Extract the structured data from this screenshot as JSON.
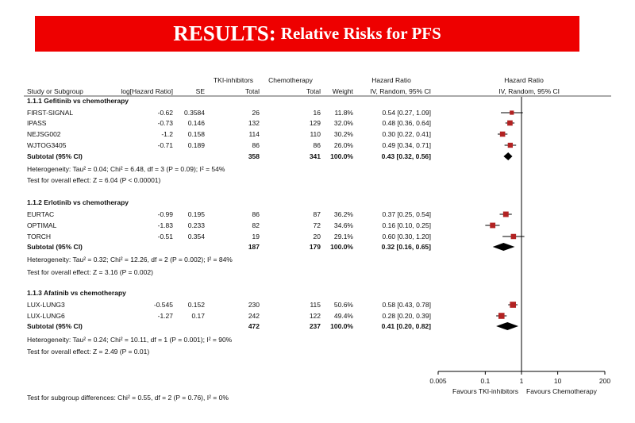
{
  "banner": {
    "title_main": "RESULTS:",
    "title_sub": "Relative Risks for PFS"
  },
  "headers": {
    "group_tki": "TKI-inhibitors",
    "group_chemo": "Chemotherapy",
    "hazard_ratio_left": "Hazard Ratio",
    "hazard_ratio_right": "Hazard Ratio",
    "study": "Study or Subgroup",
    "loghr": "log[Hazard Ratio]",
    "se": "SE",
    "tki_total": "Total",
    "chemo_total": "Total",
    "weight": "Weight",
    "method_left": "IV, Random, 95% CI",
    "method_right": "IV, Random, 95% CI"
  },
  "chart_data": {
    "type": "forest",
    "x_scale": "log",
    "xlim": [
      0.005,
      200
    ],
    "xticks": [
      "0.005",
      "0.1",
      "1",
      "10",
      "200"
    ],
    "reference_line": 1,
    "favours_left": "Favours TKI-inhibitors",
    "favours_right": "Favours Chemotherapy",
    "marker_color": "#b22222",
    "subgroups": [
      {
        "title": "1.1.1 Gefitinib vs chemotherapy",
        "studies": [
          {
            "name": "FIRST-SIGNAL",
            "loghr": "-0.62",
            "se": "0.3584",
            "tki": "26",
            "chemo": "16",
            "weight": "11.8%",
            "ci_text": "0.54 [0.27, 1.09]",
            "hr": 0.54,
            "lo": 0.27,
            "hi": 1.09,
            "w": 11.8
          },
          {
            "name": "IPASS",
            "loghr": "-0.73",
            "se": "0.146",
            "tki": "132",
            "chemo": "129",
            "weight": "32.0%",
            "ci_text": "0.48 [0.36, 0.64]",
            "hr": 0.48,
            "lo": 0.36,
            "hi": 0.64,
            "w": 32.0
          },
          {
            "name": "NEJSG002",
            "loghr": "-1.2",
            "se": "0.158",
            "tki": "114",
            "chemo": "110",
            "weight": "30.2%",
            "ci_text": "0.30 [0.22, 0.41]",
            "hr": 0.3,
            "lo": 0.22,
            "hi": 0.41,
            "w": 30.2
          },
          {
            "name": "WJTOG3405",
            "loghr": "-0.71",
            "se": "0.189",
            "tki": "86",
            "chemo": "86",
            "weight": "26.0%",
            "ci_text": "0.49 [0.34, 0.71]",
            "hr": 0.49,
            "lo": 0.34,
            "hi": 0.71,
            "w": 26.0
          }
        ],
        "subtotal": {
          "label": "Subtotal (95% CI)",
          "tki": "358",
          "chemo": "341",
          "weight": "100.0%",
          "ci_text": "0.43 [0.32, 0.56]",
          "hr": 0.43,
          "lo": 0.32,
          "hi": 0.56
        },
        "heterogeneity": "Heterogeneity: Tau² = 0.04; Chi² = 6.48, df = 3 (P = 0.09); I² = 54%",
        "overall": "Test for overall effect: Z = 6.04 (P < 0.00001)"
      },
      {
        "title": "1.1.2 Erlotinib vs chemotherapy",
        "studies": [
          {
            "name": "EURTAC",
            "loghr": "-0.99",
            "se": "0.195",
            "tki": "86",
            "chemo": "87",
            "weight": "36.2%",
            "ci_text": "0.37 [0.25, 0.54]",
            "hr": 0.37,
            "lo": 0.25,
            "hi": 0.54,
            "w": 36.2
          },
          {
            "name": "OPTIMAL",
            "loghr": "-1.83",
            "se": "0.233",
            "tki": "82",
            "chemo": "72",
            "weight": "34.6%",
            "ci_text": "0.16 [0.10, 0.25]",
            "hr": 0.16,
            "lo": 0.1,
            "hi": 0.25,
            "w": 34.6
          },
          {
            "name": "TORCH",
            "loghr": "-0.51",
            "se": "0.354",
            "tki": "19",
            "chemo": "20",
            "weight": "29.1%",
            "ci_text": "0.60 [0.30, 1.20]",
            "hr": 0.6,
            "lo": 0.3,
            "hi": 1.2,
            "w": 29.1
          }
        ],
        "subtotal": {
          "label": "Subtotal (95% CI)",
          "tki": "187",
          "chemo": "179",
          "weight": "100.0%",
          "ci_text": "0.32 [0.16, 0.65]",
          "hr": 0.32,
          "lo": 0.16,
          "hi": 0.65
        },
        "heterogeneity": "Heterogeneity: Tau² = 0.32; Chi² = 12.26, df = 2 (P = 0.002); I² = 84%",
        "overall": "Test for overall effect: Z = 3.16 (P = 0.002)"
      },
      {
        "title": "1.1.3 Afatinib vs chemotherapy",
        "studies": [
          {
            "name": "LUX-LUNG3",
            "loghr": "-0.545",
            "se": "0.152",
            "tki": "230",
            "chemo": "115",
            "weight": "50.6%",
            "ci_text": "0.58 [0.43, 0.78]",
            "hr": 0.58,
            "lo": 0.43,
            "hi": 0.78,
            "w": 50.6
          },
          {
            "name": "LUX-LUNG6",
            "loghr": "-1.27",
            "se": "0.17",
            "tki": "242",
            "chemo": "122",
            "weight": "49.4%",
            "ci_text": "0.28 [0.20, 0.39]",
            "hr": 0.28,
            "lo": 0.2,
            "hi": 0.39,
            "w": 49.4
          }
        ],
        "subtotal": {
          "label": "Subtotal (95% CI)",
          "tki": "472",
          "chemo": "237",
          "weight": "100.0%",
          "ci_text": "0.41 [0.20, 0.82]",
          "hr": 0.41,
          "lo": 0.2,
          "hi": 0.82
        },
        "heterogeneity": "Heterogeneity: Tau² = 0.24; Chi² = 10.11, df = 1 (P = 0.001); I² = 90%",
        "overall": "Test for overall effect: Z = 2.49 (P = 0.01)"
      }
    ],
    "subgroup_differences": "Test for subgroup differences: Chi² = 0.55, df = 2 (P = 0.76), I² = 0%"
  }
}
